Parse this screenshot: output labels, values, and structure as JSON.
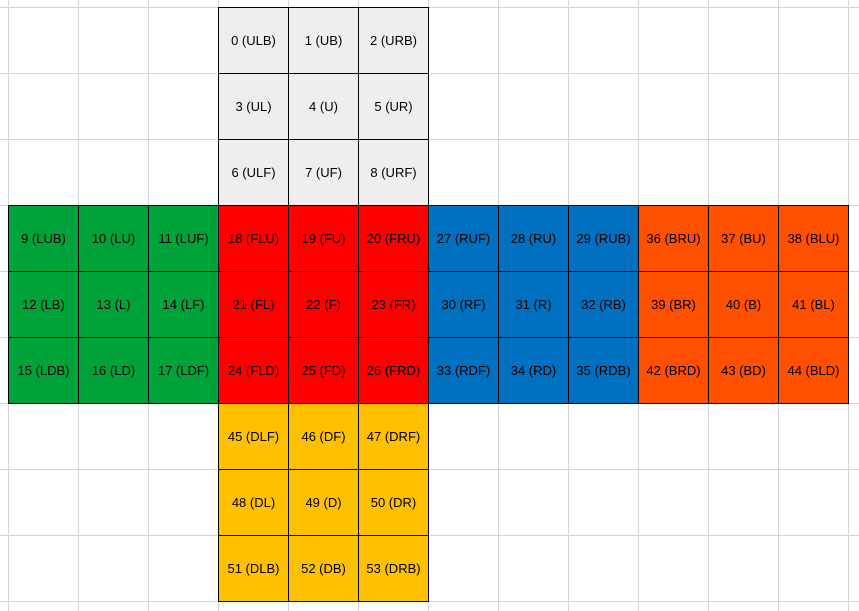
{
  "colors": {
    "U": "#eeeeee",
    "L": "#00a33a",
    "F": "#ff0000",
    "R": "#0070c0",
    "B": "#ff5000",
    "D": "#ffc000",
    "text": "#000000",
    "gridline": "#d4d4d4"
  },
  "faces": [
    {
      "name": "U",
      "color_key": "U",
      "cells": [
        [
          "0 (ULB)",
          "1 (UB)",
          "2 (URB)"
        ],
        [
          "3 (UL)",
          "4 (U)",
          "5 (UR)"
        ],
        [
          "6 (ULF)",
          "7 (UF)",
          "8 (URF)"
        ]
      ]
    },
    {
      "name": "L",
      "color_key": "L",
      "cells": [
        [
          "9 (LUB)",
          "10 (LU)",
          "11 (LUF)"
        ],
        [
          "12 (LB)",
          "13 (L)",
          "14 (LF)"
        ],
        [
          "15 (LDB)",
          "16 (LD)",
          "17 (LDF)"
        ]
      ]
    },
    {
      "name": "F",
      "color_key": "F",
      "cells": [
        [
          "18 (FLU)",
          "19 (FU)",
          "20 (FRU)"
        ],
        [
          "21 (FL)",
          "22 (F)",
          "23 (FR)"
        ],
        [
          "24 (FLD)",
          "25 (FD)",
          "26 (FRD)"
        ]
      ]
    },
    {
      "name": "R",
      "color_key": "R",
      "cells": [
        [
          "27 (RUF)",
          "28 (RU)",
          "29 (RUB)"
        ],
        [
          "30 (RF)",
          "31 (R)",
          "32 (RB)"
        ],
        [
          "33 (RDF)",
          "34 (RD)",
          "35 (RDB)"
        ]
      ]
    },
    {
      "name": "B",
      "color_key": "B",
      "cells": [
        [
          "36 (BRU)",
          "37 (BU)",
          "38 (BLU)"
        ],
        [
          "39 (BR)",
          "40 (B)",
          "41 (BL)"
        ],
        [
          "42 (BRD)",
          "43 (BD)",
          "44 (BLD)"
        ]
      ]
    },
    {
      "name": "D",
      "color_key": "D",
      "cells": [
        [
          "45 (DLF)",
          "46 (DF)",
          "47 (DRF)"
        ],
        [
          "48 (DL)",
          "49 (D)",
          "50 (DR)"
        ],
        [
          "51 (DLB)",
          "52 (DB)",
          "53 (DRB)"
        ]
      ]
    }
  ]
}
